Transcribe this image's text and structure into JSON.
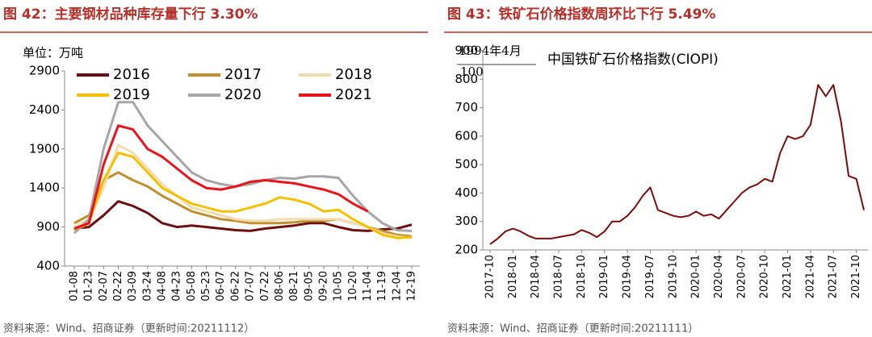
{
  "chart_data": [
    {
      "type": "line",
      "title": "图 42：主要钢材品种库存量下行 3.30%",
      "unit": "单位：万吨",
      "source": "资料来源：Wind、招商证券（更新时间:20211112）",
      "categories": [
        "01-08",
        "01-23",
        "02-07",
        "02-22",
        "03-09",
        "03-24",
        "04-08",
        "04-23",
        "05-08",
        "05-23",
        "06-07",
        "06-22",
        "07-07",
        "07-22",
        "08-06",
        "08-21",
        "09-05",
        "09-20",
        "10-05",
        "10-20",
        "11-04",
        "11-19",
        "12-04",
        "12-19"
      ],
      "ylim": [
        400,
        2900
      ],
      "yticks": [
        400,
        900,
        1400,
        1900,
        2400,
        2900
      ],
      "series": [
        {
          "name": "2016",
          "color": "#6b1010",
          "values": [
            880,
            900,
            1050,
            1230,
            1170,
            1080,
            950,
            900,
            920,
            900,
            880,
            860,
            850,
            880,
            900,
            920,
            950,
            950,
            900,
            860,
            850,
            870,
            880,
            930
          ]
        },
        {
          "name": "2017",
          "color": "#c0902e",
          "values": [
            950,
            1050,
            1500,
            1600,
            1500,
            1420,
            1300,
            1200,
            1100,
            1050,
            1000,
            980,
            950,
            950,
            950,
            960,
            980,
            980,
            1000,
            950,
            900,
            850,
            800,
            780
          ]
        },
        {
          "name": "2018",
          "color": "#f1dcb0",
          "values": [
            900,
            1000,
            1400,
            1950,
            1850,
            1650,
            1450,
            1300,
            1150,
            1100,
            1050,
            1000,
            980,
            980,
            1000,
            1000,
            1000,
            1000,
            1000,
            950,
            900,
            820,
            780,
            760
          ]
        },
        {
          "name": "2019",
          "color": "#f5c000",
          "values": [
            850,
            950,
            1500,
            1850,
            1800,
            1600,
            1400,
            1300,
            1200,
            1150,
            1100,
            1100,
            1150,
            1200,
            1280,
            1250,
            1200,
            1100,
            1120,
            1000,
            900,
            800,
            760,
            770
          ]
        },
        {
          "name": "2020",
          "color": "#a6a6a6",
          "values": [
            820,
            1000,
            1900,
            2500,
            2500,
            2200,
            2000,
            1800,
            1600,
            1500,
            1450,
            1420,
            1450,
            1500,
            1530,
            1520,
            1550,
            1550,
            1530,
            1300,
            1100,
            950,
            860,
            850
          ]
        },
        {
          "name": "2021",
          "color": "#e8141c",
          "values": [
            880,
            950,
            1700,
            2200,
            2150,
            1900,
            1800,
            1650,
            1500,
            1400,
            1380,
            1420,
            1480,
            1500,
            1480,
            1460,
            1420,
            1380,
            1320,
            1200,
            1100,
            null,
            null,
            null
          ]
        }
      ]
    },
    {
      "type": "line",
      "title": "图 43：铁矿石价格指数周环比下行 5.49%",
      "annotation": [
        "1994年4月",
        "100"
      ],
      "source": "资料来源：Wind、招商证券（更新时间:20211111）",
      "categories": [
        "2017-10",
        null,
        null,
        "2018-01",
        null,
        null,
        "2018-04",
        null,
        null,
        "2018-07",
        null,
        null,
        "2018-10",
        null,
        null,
        "2019-01",
        null,
        null,
        "2019-04",
        null,
        null,
        "2019-07",
        null,
        null,
        "2019-10",
        null,
        null,
        "2020-01",
        null,
        null,
        "2020-04",
        null,
        null,
        "2020-07",
        null,
        null,
        "2020-10",
        null,
        null,
        "2021-01",
        null,
        null,
        "2021-04",
        null,
        null,
        "2021-07",
        null,
        null,
        "2021-10",
        null
      ],
      "ylim": [
        200,
        900
      ],
      "yticks": [
        200,
        300,
        400,
        500,
        600,
        700,
        800,
        900
      ],
      "series": [
        {
          "name": "中国铁矿石价格指数(CIOPI)",
          "color": "#7b0c0c",
          "values": [
            220,
            240,
            265,
            275,
            265,
            250,
            240,
            240,
            240,
            245,
            250,
            255,
            270,
            260,
            245,
            265,
            300,
            300,
            320,
            350,
            390,
            420,
            340,
            330,
            320,
            315,
            320,
            335,
            320,
            325,
            310,
            340,
            370,
            400,
            420,
            430,
            450,
            440,
            540,
            600,
            590,
            600,
            640,
            780,
            740,
            780,
            650,
            460,
            450,
            340
          ]
        }
      ]
    }
  ]
}
